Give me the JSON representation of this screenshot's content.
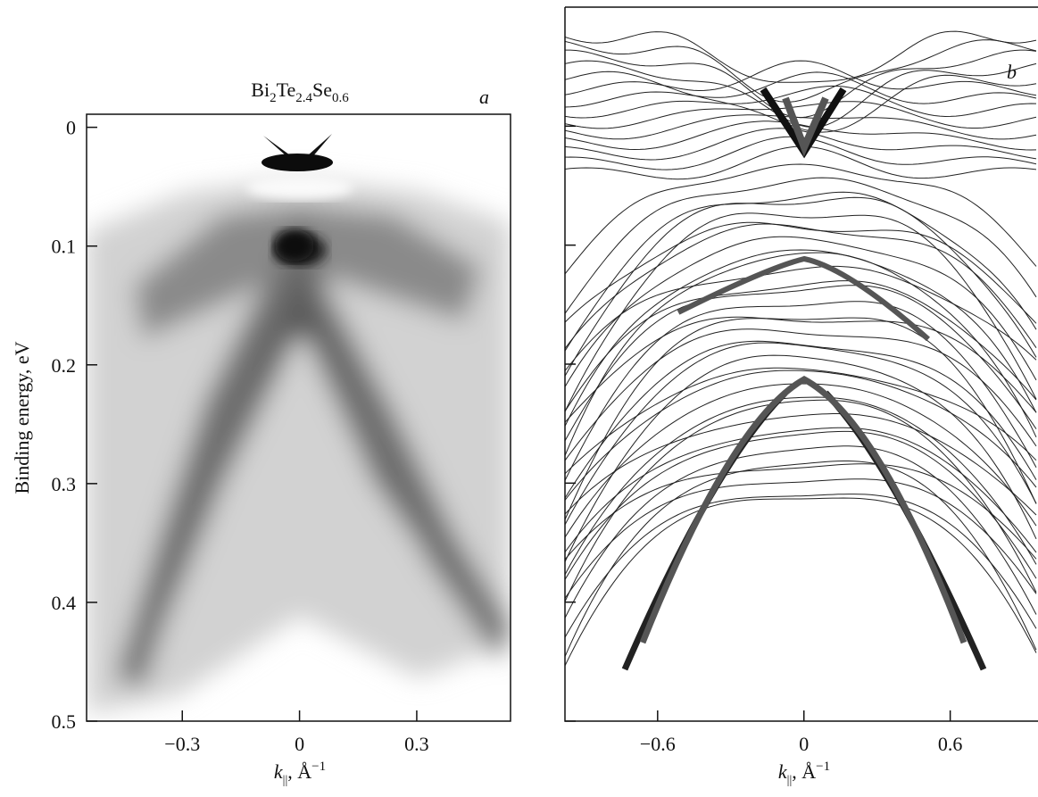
{
  "chart_data": [
    {
      "type": "heatmap",
      "title": [
        "Bi",
        "2",
        "Te",
        "2.4",
        "Se",
        "0.6"
      ],
      "panel_label": "a",
      "x_label": [
        "k",
        "||",
        ", Å",
        "−1"
      ],
      "y_label": "Binding energy, eV",
      "xlim": [
        -0.545,
        0.54
      ],
      "xticks": [
        {
          "value": -0.3,
          "label": "−0.3"
        },
        0,
        0.3
      ],
      "ylim": [
        -0.011,
        0.5
      ],
      "y_reversed": true,
      "yticks": [
        0,
        0.1,
        0.2,
        0.3,
        0.4,
        0.5
      ]
    },
    {
      "type": "bands",
      "panel_label": "b",
      "x_label": [
        "k",
        "||",
        ", Å",
        "−1"
      ],
      "xlim": [
        -0.98,
        0.96
      ],
      "xticks": [
        {
          "value": -0.6,
          "label": "−0.6"
        },
        0,
        0.6
      ],
      "ylim": [
        -0.1,
        0.5
      ],
      "y_reversed": true,
      "yticks": [
        0,
        0.1,
        0.2,
        0.3,
        0.4,
        0.5
      ]
    }
  ]
}
